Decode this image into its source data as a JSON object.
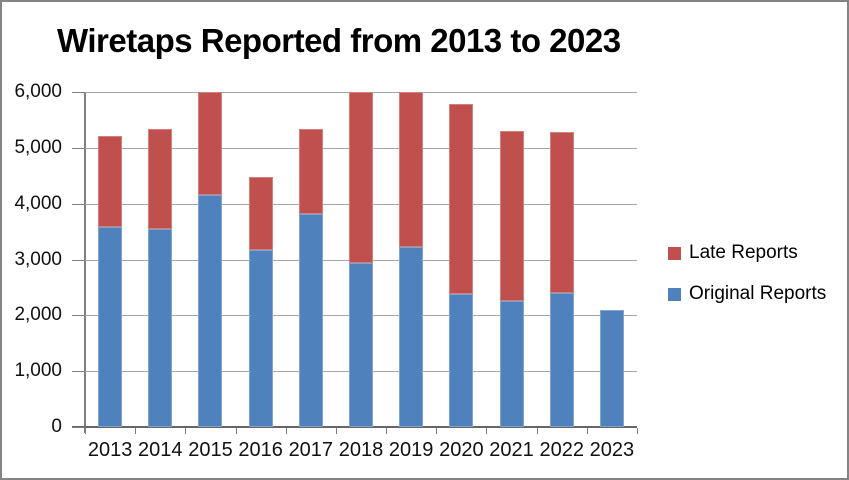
{
  "window": {
    "background_color": "#ffffff",
    "frame_border_color": "#848484"
  },
  "chart_data": {
    "type": "bar",
    "stacked": true,
    "title": "Wiretaps Reported from 2013 to 2023",
    "categories": [
      "2013",
      "2014",
      "2015",
      "2016",
      "2017",
      "2018",
      "2019",
      "2020",
      "2021",
      "2022",
      "2023"
    ],
    "series": [
      {
        "name": "Original Reports",
        "color": "#4F81BD",
        "values": [
          3580,
          3550,
          4150,
          3170,
          3810,
          2940,
          3220,
          2380,
          2250,
          2400,
          2100
        ]
      },
      {
        "name": "Late Reports",
        "color": "#C0504D",
        "values": [
          1640,
          1780,
          1850,
          1310,
          1530,
          3060,
          2780,
          3410,
          3060,
          2880,
          0
        ]
      }
    ],
    "totals_displayed": [
      5220,
      5330,
      6000,
      4480,
      5340,
      6000,
      6000,
      5790,
      5310,
      5280,
      2100
    ],
    "bars_clipped_at_axis_max": [
      "2015",
      "2018",
      "2019"
    ],
    "xlabel": "",
    "ylabel": "",
    "ylim": [
      0,
      6000
    ],
    "yticks": [
      0,
      1000,
      2000,
      3000,
      4000,
      5000,
      6000
    ],
    "ytick_labels": [
      "0",
      "1,000",
      "2,000",
      "3,000",
      "4,000",
      "5,000",
      "6,000"
    ],
    "grid": "horizontal",
    "gridline_color": "#a6a6a6",
    "axis_color": "#7f7f7f",
    "text_color": "#111111",
    "legend_position": "right",
    "legend": [
      {
        "label": "Late Reports",
        "color": "#C0504D"
      },
      {
        "label": "Original Reports",
        "color": "#4F81BD"
      }
    ]
  }
}
